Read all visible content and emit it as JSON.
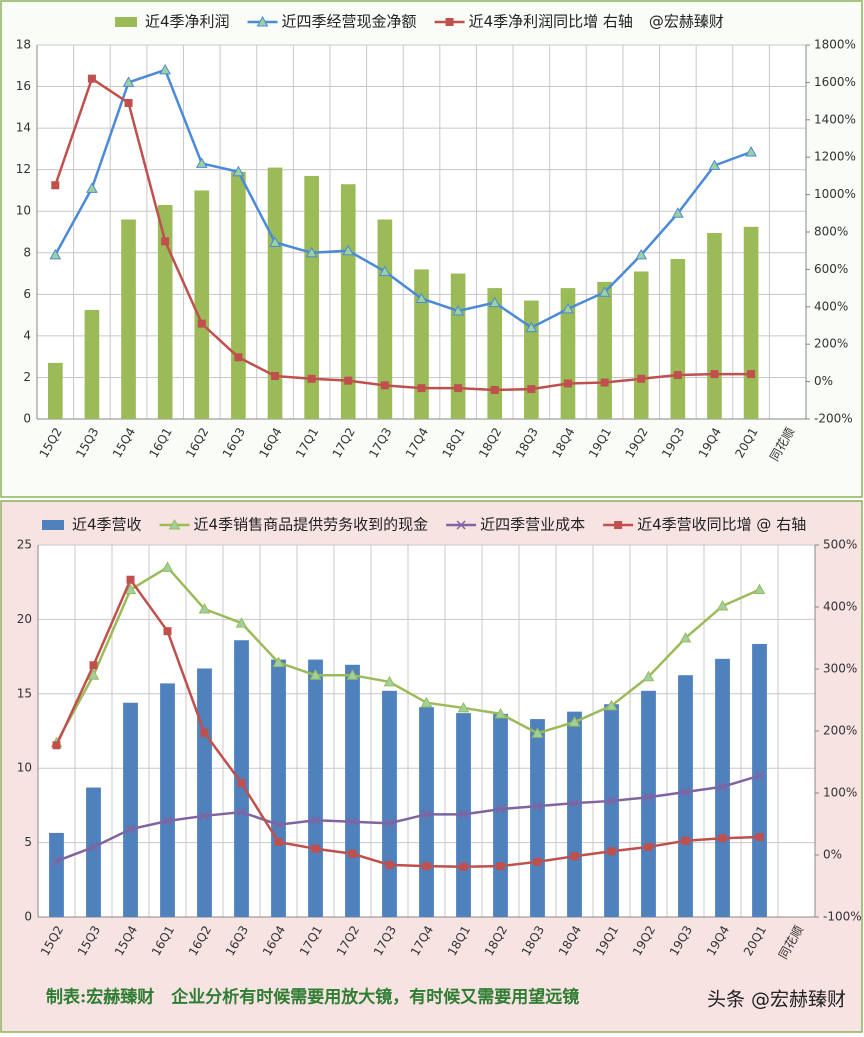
{
  "chart_data": [
    {
      "type": "combo",
      "categories": [
        "15Q2",
        "15Q3",
        "15Q4",
        "16Q1",
        "16Q2",
        "16Q3",
        "16Q4",
        "17Q1",
        "17Q2",
        "17Q3",
        "17Q4",
        "18Q1",
        "18Q2",
        "18Q3",
        "18Q4",
        "19Q1",
        "19Q2",
        "19Q3",
        "19Q4",
        "20Q1",
        "同花顺"
      ],
      "series": [
        {
          "name": "近4季净利润",
          "type": "bar",
          "color": "#9bbb59",
          "values": [
            2.7,
            5.25,
            9.6,
            10.3,
            11.0,
            11.9,
            12.1,
            11.7,
            11.3,
            9.6,
            7.2,
            7.0,
            6.3,
            5.7,
            6.3,
            6.6,
            7.1,
            7.7,
            8.95,
            9.25,
            null
          ]
        },
        {
          "name": "近四季经营现金净额",
          "type": "line",
          "marker": "triangle",
          "color": "#4a8ad6",
          "values": [
            7.9,
            11.1,
            16.2,
            16.8,
            12.3,
            11.9,
            8.5,
            8.0,
            8.1,
            7.1,
            5.8,
            5.2,
            5.6,
            4.4,
            5.3,
            6.1,
            7.9,
            9.9,
            12.2,
            12.85,
            null
          ]
        },
        {
          "name": "近4季净利润同比增 右轴",
          "type": "line",
          "marker": "square",
          "color": "#c0504d",
          "axis": "y2",
          "values": [
            1050,
            1620,
            1490,
            750,
            310,
            130,
            30,
            15,
            5,
            -20,
            -35,
            -35,
            -45,
            -40,
            -10,
            -5,
            15,
            35,
            40,
            40,
            null
          ]
        }
      ],
      "annotation": "@宏赫臻财",
      "ylim": [
        0,
        18
      ],
      "yticks": [
        0,
        2,
        4,
        6,
        8,
        10,
        12,
        14,
        16,
        18
      ],
      "y2lim": [
        -200,
        1800
      ],
      "y2ticks": [
        {
          "value": -200,
          "label": "-200%"
        },
        {
          "value": 0,
          "label": "0%"
        },
        {
          "value": 200,
          "label": "200%"
        },
        {
          "value": 400,
          "label": "400%"
        },
        {
          "value": 600,
          "label": "600%"
        },
        {
          "value": 800,
          "label": "800%"
        },
        {
          "value": 1000,
          "label": "1000%"
        },
        {
          "value": 1200,
          "label": "1200%"
        },
        {
          "value": 1400,
          "label": "1400%"
        },
        {
          "value": 1600,
          "label": "1600%"
        },
        {
          "value": 1800,
          "label": "1800%"
        }
      ],
      "grid": true
    },
    {
      "type": "combo",
      "categories": [
        "15Q2",
        "15Q3",
        "15Q4",
        "16Q1",
        "16Q2",
        "16Q3",
        "16Q4",
        "17Q1",
        "17Q2",
        "17Q3",
        "17Q4",
        "18Q1",
        "18Q2",
        "18Q3",
        "18Q4",
        "19Q1",
        "19Q2",
        "19Q3",
        "19Q4",
        "20Q1",
        "同花顺"
      ],
      "series": [
        {
          "name": "近4季营收",
          "type": "bar",
          "color": "#4f81bd",
          "values": [
            5.65,
            8.7,
            14.4,
            15.7,
            16.7,
            18.6,
            17.3,
            17.3,
            16.95,
            15.2,
            14.1,
            13.7,
            13.65,
            13.3,
            13.8,
            14.3,
            15.2,
            16.25,
            17.35,
            18.35,
            null
          ]
        },
        {
          "name": "近4季销售商品提供劳务收到的现金",
          "type": "line",
          "marker": "triangle",
          "color": "#9bbb59",
          "values": [
            11.7,
            16.25,
            22.0,
            23.5,
            20.7,
            19.75,
            17.1,
            16.25,
            16.25,
            15.8,
            14.4,
            14.05,
            13.65,
            12.35,
            13.1,
            14.2,
            16.15,
            18.75,
            20.9,
            22.0,
            null
          ]
        },
        {
          "name": "近四季营业成本",
          "type": "line",
          "marker": "x",
          "color": "#8064a2",
          "values": [
            3.75,
            4.7,
            5.9,
            6.45,
            6.8,
            7.05,
            6.2,
            6.5,
            6.4,
            6.3,
            6.9,
            6.9,
            7.25,
            7.45,
            7.65,
            7.8,
            8.05,
            8.4,
            8.75,
            9.5,
            null
          ]
        },
        {
          "name": "近4季营收同比增 @ 右轴",
          "type": "line",
          "marker": "square",
          "color": "#c0504d",
          "axis": "y2",
          "values": [
            177,
            306,
            444,
            361,
            197,
            116,
            21,
            10,
            2,
            -16,
            -18,
            -19,
            -18,
            -11,
            -2,
            6,
            13,
            23,
            27,
            29,
            null
          ]
        }
      ],
      "ylim": [
        0,
        25
      ],
      "yticks": [
        0,
        5,
        10,
        15,
        20,
        25
      ],
      "y2lim": [
        -100,
        500
      ],
      "y2ticks": [
        {
          "value": -100,
          "label": "-100%"
        },
        {
          "value": 0,
          "label": "0%"
        },
        {
          "value": 100,
          "label": "100%"
        },
        {
          "value": 200,
          "label": "200%"
        },
        {
          "value": 300,
          "label": "300%"
        },
        {
          "value": 400,
          "label": "400%"
        },
        {
          "value": 500,
          "label": "500%"
        }
      ],
      "grid": true
    }
  ],
  "footer": {
    "caption": "制表:宏赫臻财　企业分析有时候需要用放大镜，有时候又需要用望远镜",
    "watermark": "头条 @宏赫臻财"
  }
}
